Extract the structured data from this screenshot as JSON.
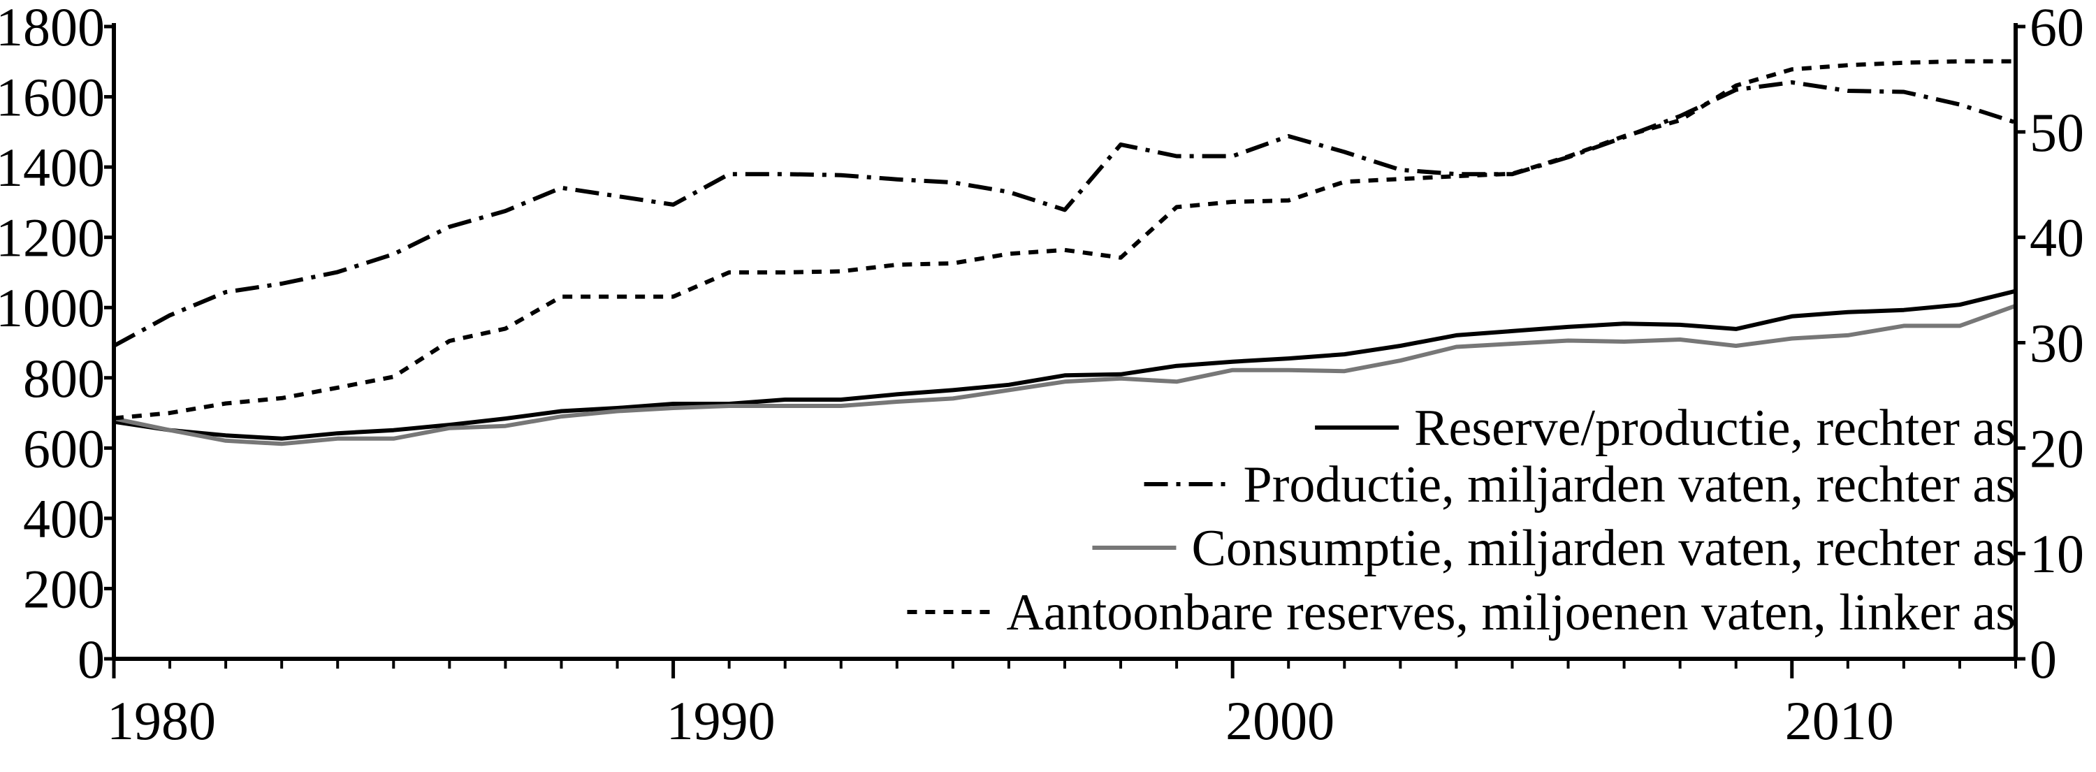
{
  "chart_data": {
    "type": "line",
    "x": [
      1980,
      1981,
      1982,
      1983,
      1984,
      1985,
      1986,
      1987,
      1988,
      1989,
      1990,
      1991,
      1992,
      1993,
      1994,
      1995,
      1996,
      1997,
      1998,
      1999,
      2000,
      2001,
      2002,
      2003,
      2004,
      2005,
      2006,
      2007,
      2008,
      2009,
      2010,
      2011,
      2012,
      2013,
      2014
    ],
    "xlim": [
      1980,
      2014
    ],
    "xticks": [
      1980,
      1990,
      2000,
      2010
    ],
    "ylim": [
      0,
      1800
    ],
    "yticks": [
      0,
      200,
      400,
      600,
      800,
      1000,
      1200,
      1400,
      1600,
      1800
    ],
    "y2lim": [
      0,
      60
    ],
    "y2ticks": [
      0,
      10,
      20,
      30,
      40,
      50,
      60
    ],
    "legend": "lower right",
    "series": [
      {
        "name": "Reserve/productie, rechter as",
        "color": "#000000",
        "dash": "solid",
        "axis": "y2",
        "values": [
          22.5,
          21.7,
          21.2,
          20.9,
          21.4,
          21.7,
          22.2,
          22.8,
          23.5,
          23.8,
          24.2,
          24.2,
          24.6,
          24.6,
          25.1,
          25.5,
          26.0,
          26.9,
          27.0,
          27.8,
          28.2,
          28.5,
          28.9,
          29.7,
          30.7,
          31.1,
          31.5,
          31.8,
          31.7,
          31.3,
          32.5,
          32.9,
          33.1,
          33.6,
          34.9
        ]
      },
      {
        "name": "Productie, miljarden vaten, rechter as",
        "color": "#000000",
        "dash": "dashdot",
        "axis": "y2",
        "values": [
          29.7,
          32.6,
          34.8,
          35.6,
          36.7,
          38.4,
          41.0,
          42.5,
          44.7,
          43.9,
          43.1,
          46.0,
          46.0,
          45.9,
          45.5,
          45.2,
          44.3,
          42.6,
          48.8,
          47.7,
          47.7,
          49.6,
          48.1,
          46.4,
          46.0,
          46.0,
          47.6,
          49.5,
          51.5,
          54.0,
          54.7,
          53.9,
          53.8,
          52.6,
          50.9
        ]
      },
      {
        "name": "Consumptie, miljarden vaten, rechter as",
        "color": "#777777",
        "dash": "solid",
        "axis": "y2",
        "values": [
          22.8,
          21.7,
          20.7,
          20.4,
          20.9,
          20.9,
          21.9,
          22.1,
          23.0,
          23.5,
          23.8,
          24.0,
          24.0,
          24.0,
          24.4,
          24.7,
          25.5,
          26.3,
          26.6,
          26.3,
          27.4,
          27.4,
          27.3,
          28.3,
          29.6,
          29.9,
          30.2,
          30.1,
          30.3,
          29.7,
          30.4,
          30.7,
          31.6,
          31.6,
          33.5
        ]
      },
      {
        "name": "Aantoonbare reserves, miljoenen vaten, linker as",
        "color": "#000000",
        "dash": "dashed",
        "axis": "y",
        "values": [
          685,
          700,
          727,
          742,
          772,
          803,
          905,
          940,
          1031,
          1031,
          1031,
          1100,
          1100,
          1103,
          1122,
          1126,
          1153,
          1164,
          1142,
          1286,
          1301,
          1305,
          1358,
          1366,
          1374,
          1381,
          1430,
          1488,
          1533,
          1632,
          1678,
          1690,
          1697,
          1701,
          1701
        ]
      }
    ]
  }
}
